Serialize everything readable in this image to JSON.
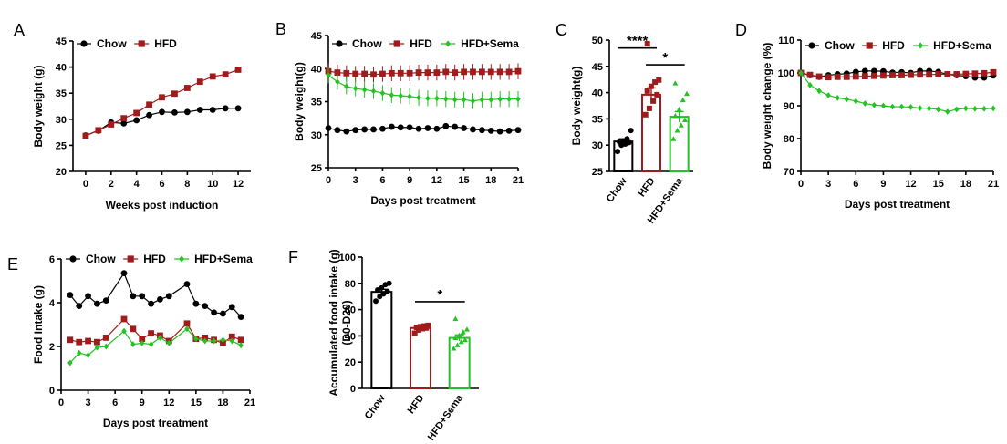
{
  "colors": {
    "chow": "#000000",
    "hfd": "#a01c1c",
    "sema": "#22c322"
  },
  "chart_data": [
    {
      "panel": "A",
      "type": "line",
      "xlabel": "Weeks post induction",
      "ylabel": "Body weight (g)",
      "xlim": [
        -1,
        13
      ],
      "ylim": [
        20,
        45
      ],
      "xticks": [
        0,
        2,
        4,
        6,
        8,
        10,
        12
      ],
      "yticks": [
        20,
        25,
        30,
        35,
        40,
        45
      ],
      "legend": "top-left",
      "series": [
        {
          "name": "Chow",
          "key": "chow",
          "marker": "circle",
          "x": [
            0,
            1,
            2,
            3,
            4,
            5,
            6,
            7,
            8,
            9,
            10,
            11,
            12
          ],
          "y": [
            26.9,
            27.8,
            29.4,
            29.2,
            29.8,
            30.8,
            31.4,
            31.3,
            31.4,
            31.8,
            31.8,
            32.1,
            32.1
          ]
        },
        {
          "name": "HFD",
          "key": "hfd",
          "marker": "square",
          "x": [
            0,
            1,
            2,
            3,
            4,
            5,
            6,
            7,
            8,
            9,
            10,
            11,
            12
          ],
          "y": [
            26.8,
            27.9,
            29.0,
            30.2,
            31.2,
            32.8,
            34.2,
            34.9,
            36.0,
            37.2,
            38.2,
            38.6,
            39.5
          ]
        }
      ]
    },
    {
      "panel": "B",
      "type": "line",
      "xlabel": "Days post treatment",
      "ylabel": "Body weight(g)",
      "xlim": [
        0,
        21
      ],
      "ylim": [
        25,
        45
      ],
      "xticks": [
        0,
        3,
        6,
        9,
        12,
        15,
        18,
        21
      ],
      "yticks": [
        25,
        30,
        35,
        40,
        45
      ],
      "legend": "top",
      "series": [
        {
          "name": "Chow",
          "key": "chow",
          "marker": "circle",
          "x": [
            0,
            1,
            2,
            3,
            4,
            5,
            6,
            7,
            8,
            9,
            10,
            11,
            12,
            13,
            14,
            15,
            16,
            17,
            18,
            19,
            20,
            21
          ],
          "y": [
            31.0,
            30.7,
            30.5,
            30.7,
            30.8,
            30.8,
            30.9,
            31.2,
            31.1,
            31.1,
            30.9,
            31.0,
            30.9,
            31.3,
            31.2,
            31.0,
            30.8,
            30.7,
            30.6,
            30.5,
            30.6,
            30.7
          ]
        },
        {
          "name": "HFD",
          "key": "hfd",
          "marker": "square",
          "x": [
            0,
            1,
            2,
            3,
            4,
            5,
            6,
            7,
            8,
            9,
            10,
            11,
            12,
            13,
            14,
            15,
            16,
            17,
            18,
            19,
            20,
            21
          ],
          "y": [
            39.6,
            39.4,
            39.3,
            39.2,
            39.2,
            39.1,
            39.2,
            39.3,
            39.3,
            39.3,
            39.4,
            39.4,
            39.4,
            39.5,
            39.4,
            39.5,
            39.5,
            39.5,
            39.5,
            39.5,
            39.5,
            39.6
          ]
        },
        {
          "name": "HFD+Sema",
          "key": "sema",
          "marker": "diamond",
          "x": [
            0,
            1,
            2,
            3,
            4,
            5,
            6,
            7,
            8,
            9,
            10,
            11,
            12,
            13,
            14,
            15,
            16,
            17,
            18,
            19,
            20,
            21
          ],
          "y": [
            39.0,
            38.0,
            37.3,
            37.0,
            36.8,
            36.6,
            36.3,
            36.0,
            35.9,
            35.8,
            35.6,
            35.5,
            35.5,
            35.4,
            35.3,
            35.3,
            35.1,
            35.3,
            35.3,
            35.4,
            35.4,
            35.4
          ]
        }
      ]
    },
    {
      "panel": "C",
      "type": "bar",
      "ylabel": "Body weight(g)",
      "ylim": [
        25,
        50
      ],
      "yticks": [
        25,
        30,
        35,
        40,
        45,
        50
      ],
      "categories": [
        "Chow",
        "HFD",
        "HFD+Sema"
      ],
      "keys": [
        "chow",
        "hfd",
        "sema"
      ],
      "markers": [
        "circle",
        "square",
        "triangle"
      ],
      "values": [
        30.7,
        39.6,
        35.4
      ],
      "errors": [
        0.5,
        1.3,
        1.0
      ],
      "points": [
        [
          28.8,
          30.0,
          30.2,
          30.5,
          30.6,
          30.8,
          31.2,
          32.8
        ],
        [
          35.8,
          37.0,
          38.4,
          39.6,
          40.3,
          41.2,
          42.0,
          42.4,
          49.3
        ],
        [
          31.2,
          32.8,
          33.8,
          34.8,
          35.6,
          36.8,
          38.6,
          39.8,
          41.8
        ]
      ],
      "significance": [
        {
          "label": "****",
          "from": 0,
          "to": 1,
          "y": 48.5
        },
        {
          "label": "*",
          "from": 1,
          "to": 2,
          "y": 45.3
        }
      ]
    },
    {
      "panel": "D",
      "type": "line",
      "xlabel": "Days post treatment",
      "ylabel": "Body weight change (%)",
      "xlim": [
        0,
        21
      ],
      "ylim": [
        70,
        110
      ],
      "xticks": [
        0,
        3,
        6,
        9,
        12,
        15,
        18,
        21
      ],
      "yticks": [
        70,
        80,
        90,
        100,
        110
      ],
      "legend": "top",
      "series": [
        {
          "name": "Chow",
          "key": "chow",
          "marker": "circle",
          "x": [
            0,
            1,
            2,
            3,
            4,
            5,
            6,
            7,
            8,
            9,
            10,
            11,
            12,
            13,
            14,
            15,
            16,
            17,
            18,
            19,
            20,
            21
          ],
          "y": [
            100,
            99.3,
            98.8,
            99.3,
            99.6,
            99.8,
            100.3,
            100.6,
            100.6,
            100.5,
            100.1,
            100.2,
            100.0,
            100.6,
            100.6,
            100.3,
            99.6,
            99.3,
            99.0,
            98.6,
            98.6,
            99.2
          ]
        },
        {
          "name": "HFD",
          "key": "hfd",
          "marker": "square",
          "x": [
            0,
            1,
            2,
            3,
            4,
            5,
            6,
            7,
            8,
            9,
            10,
            11,
            12,
            13,
            14,
            15,
            16,
            17,
            18,
            19,
            20,
            21
          ],
          "y": [
            100,
            99.4,
            98.9,
            98.7,
            98.8,
            98.8,
            98.9,
            99.0,
            99.1,
            99.2,
            99.3,
            99.3,
            99.4,
            99.5,
            99.5,
            99.6,
            99.6,
            99.6,
            99.7,
            99.8,
            99.9,
            100.2
          ]
        },
        {
          "name": "HFD+Sema",
          "key": "sema",
          "marker": "diamond",
          "x": [
            0,
            1,
            2,
            3,
            4,
            5,
            6,
            7,
            8,
            9,
            10,
            11,
            12,
            13,
            14,
            15,
            16,
            17,
            18,
            19,
            20,
            21
          ],
          "y": [
            100,
            96.3,
            94.5,
            93.2,
            92.4,
            92.0,
            91.4,
            90.7,
            90.2,
            90.0,
            89.7,
            89.7,
            89.6,
            89.3,
            89.2,
            88.9,
            88.2,
            88.9,
            89.2,
            89.1,
            89.1,
            89.2
          ]
        }
      ]
    },
    {
      "panel": "E",
      "type": "line",
      "xlabel": "Days post treatment",
      "ylabel": "Food Intake (g)",
      "xlim": [
        0,
        21
      ],
      "ylim": [
        0,
        6
      ],
      "xticks": [
        0,
        3,
        6,
        9,
        12,
        15,
        18,
        21
      ],
      "yticks": [
        0,
        2,
        4,
        6
      ],
      "legend": "top",
      "series": [
        {
          "name": "Chow",
          "key": "chow",
          "marker": "circle",
          "x": [
            1,
            2,
            3,
            4,
            5,
            7,
            8,
            9,
            10,
            11,
            12,
            14,
            15,
            16,
            17,
            18,
            19,
            20
          ],
          "y": [
            4.35,
            3.85,
            4.3,
            3.95,
            4.1,
            5.35,
            4.3,
            4.3,
            3.95,
            4.15,
            4.3,
            4.85,
            3.95,
            3.85,
            3.55,
            3.5,
            3.8,
            3.35
          ]
        },
        {
          "name": "HFD",
          "key": "hfd",
          "marker": "square",
          "x": [
            1,
            2,
            3,
            4,
            5,
            7,
            8,
            9,
            10,
            11,
            12,
            14,
            15,
            16,
            17,
            18,
            19,
            20
          ],
          "y": [
            2.3,
            2.2,
            2.25,
            2.2,
            2.4,
            3.25,
            2.8,
            2.35,
            2.6,
            2.5,
            2.25,
            3.05,
            2.35,
            2.4,
            2.3,
            2.15,
            2.45,
            2.3
          ]
        },
        {
          "name": "HFD+Sema",
          "key": "sema",
          "marker": "diamond",
          "x": [
            1,
            2,
            3,
            4,
            5,
            7,
            8,
            9,
            10,
            11,
            12,
            14,
            15,
            16,
            17,
            18,
            19,
            20
          ],
          "y": [
            1.25,
            1.7,
            1.6,
            1.95,
            2.0,
            2.7,
            2.1,
            2.15,
            2.1,
            2.4,
            2.15,
            2.8,
            2.35,
            2.25,
            2.25,
            2.3,
            2.25,
            2.05
          ]
        }
      ]
    },
    {
      "panel": "F",
      "type": "bar",
      "ylabel": "Accumulated food intake (g)",
      "ylabel2": "(D0-D20)",
      "ylim": [
        0,
        100
      ],
      "yticks": [
        0,
        20,
        40,
        60,
        80,
        100
      ],
      "categories": [
        "Chow",
        "HFD",
        "HFD+Sema"
      ],
      "keys": [
        "chow",
        "hfd",
        "sema"
      ],
      "markers": [
        "circle",
        "square",
        "triangle"
      ],
      "values": [
        73.5,
        46.0,
        38.5
      ],
      "errors": [
        2.0,
        1.0,
        2.3
      ],
      "points": [
        [
          66.5,
          70.0,
          72.0,
          74.0,
          75.0,
          76.5,
          79.0,
          80.0
        ],
        [
          42.0,
          44.5,
          45.5,
          46.0,
          46.5,
          47.0,
          47.5,
          48.0
        ],
        [
          30.5,
          33.0,
          35.5,
          37.0,
          38.5,
          40.5,
          43.0,
          45.0,
          53.0
        ]
      ],
      "significance": [
        {
          "label": "*",
          "from": 1,
          "to": 2,
          "y": 66
        }
      ]
    }
  ]
}
